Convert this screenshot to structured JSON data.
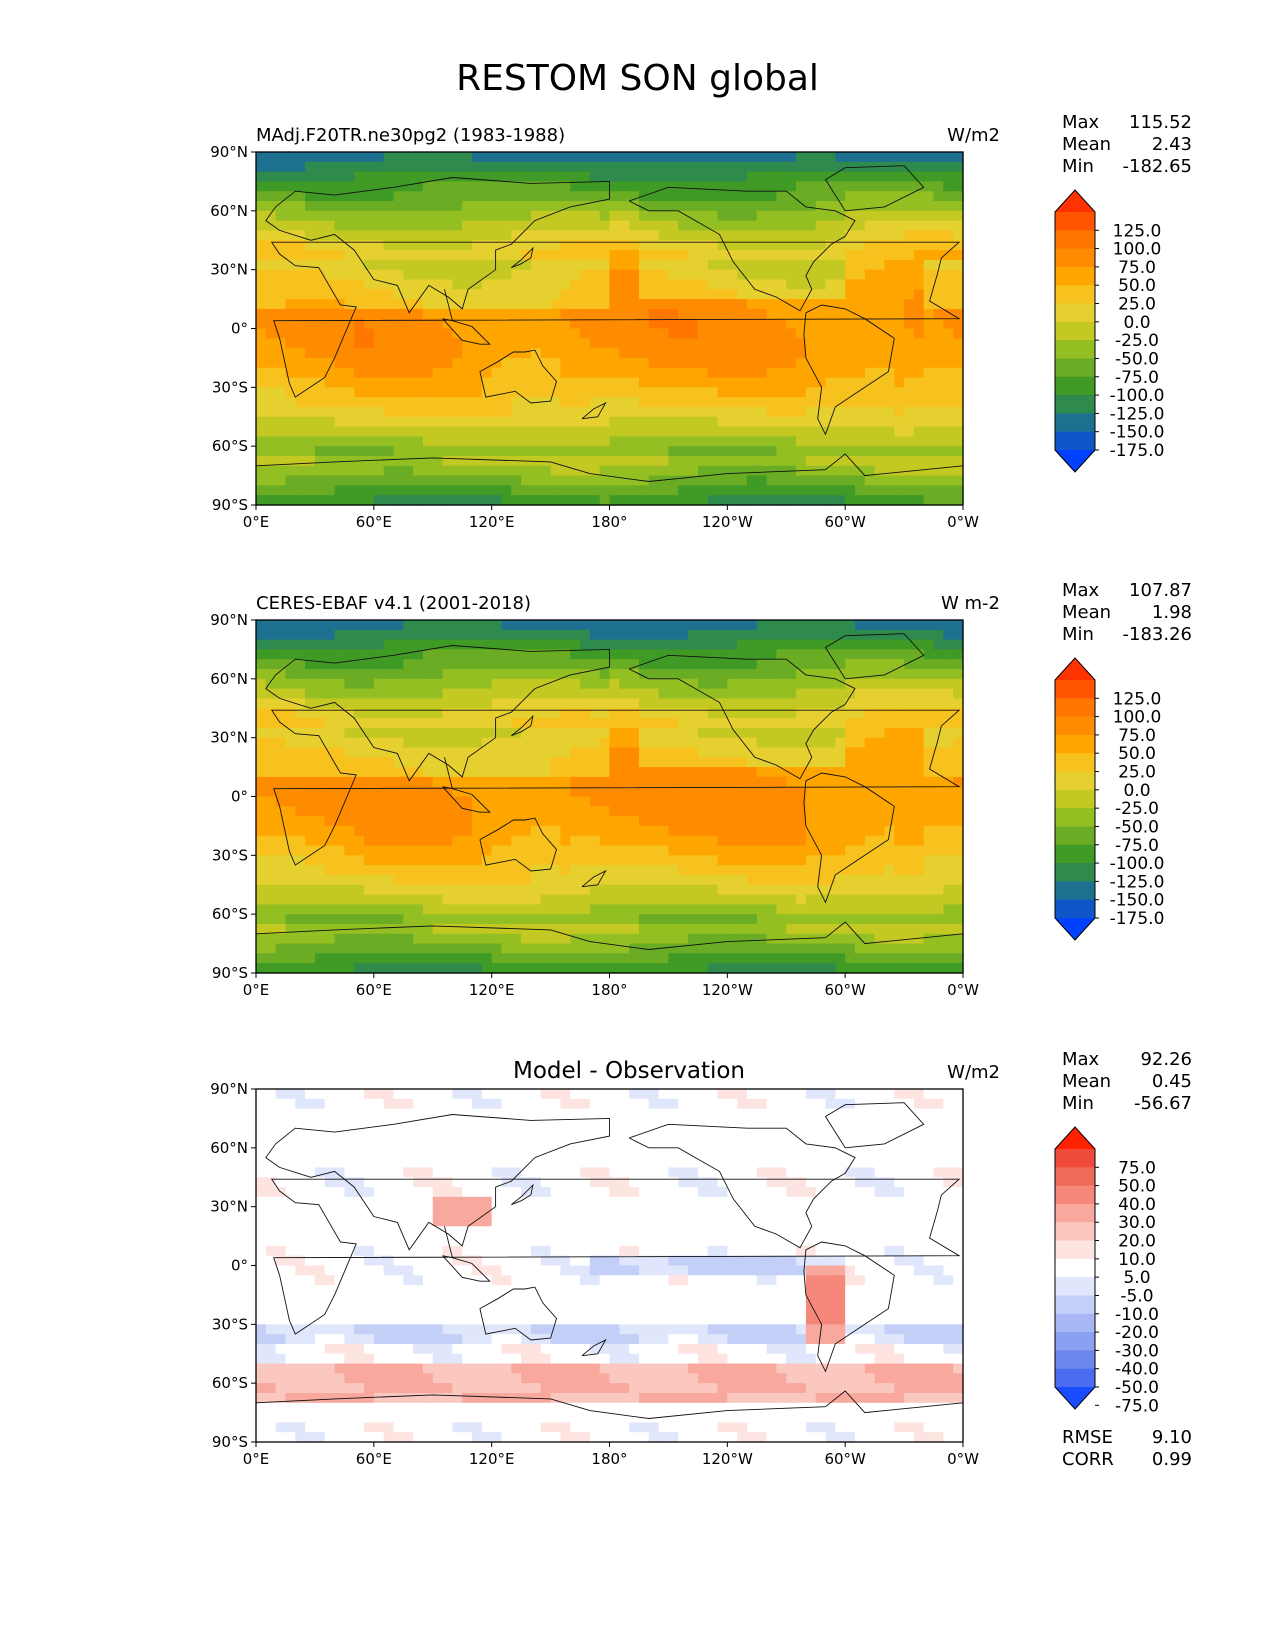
{
  "figure": {
    "title": "RESTOM SON global"
  },
  "axes": {
    "lat_ticks": [
      "90°N",
      "60°N",
      "30°N",
      "0°",
      "30°S",
      "60°S",
      "90°S"
    ],
    "lon_ticks": [
      "0°E",
      "60°E",
      "120°E",
      "180°",
      "120°W",
      "60°W",
      "0°W"
    ],
    "lon_range": [
      0,
      360
    ],
    "lat_range": [
      -90,
      90
    ]
  },
  "panels": [
    {
      "title": "MAdj.F20TR.ne30pg2 (1983-1988)",
      "units": "W/m2",
      "stats": {
        "max_label": "Max",
        "max": "115.52",
        "mean_label": "Mean",
        "mean": "2.43",
        "min_label": "Min",
        "min": "-182.65"
      },
      "colorbar": {
        "labels": [
          "125.0",
          "100.0",
          "75.0",
          "50.0",
          "25.0",
          "0.0",
          "-25.0",
          "-50.0",
          "-75.0",
          "-100.0",
          "-125.0",
          "-150.0",
          "-175.0"
        ],
        "colors": [
          "#ff3300",
          "#ff5500",
          "#ff7700",
          "#ff8c00",
          "#ffa500",
          "#f7c21e",
          "#e6d030",
          "#c4c822",
          "#94bf22",
          "#6aad24",
          "#3f9a26",
          "#2f8a4e",
          "#1e7090",
          "#1056c8",
          "#0040ff"
        ]
      }
    },
    {
      "title": "CERES-EBAF v4.1 (2001-2018)",
      "units": "W m-2",
      "stats": {
        "max_label": "Max",
        "max": "107.87",
        "mean_label": "Mean",
        "mean": "1.98",
        "min_label": "Min",
        "min": "-183.26"
      },
      "colorbar": {
        "labels": [
          "125.0",
          "100.0",
          "75.0",
          "50.0",
          "25.0",
          "0.0",
          "-25.0",
          "-50.0",
          "-75.0",
          "-100.0",
          "-125.0",
          "-150.0",
          "-175.0"
        ],
        "colors": [
          "#ff3300",
          "#ff5500",
          "#ff7700",
          "#ff8c00",
          "#ffa500",
          "#f7c21e",
          "#e6d030",
          "#c4c822",
          "#94bf22",
          "#6aad24",
          "#3f9a26",
          "#2f8a4e",
          "#1e7090",
          "#1056c8",
          "#0040ff"
        ]
      }
    },
    {
      "title": "Model - Observation",
      "units": "W/m2",
      "stats": {
        "max_label": "Max",
        "max": "92.26",
        "mean_label": "Mean",
        "mean": "0.45",
        "min_label": "Min",
        "min": "-56.67"
      },
      "colorbar": {
        "labels": [
          "75.0",
          "50.0",
          "40.0",
          "30.0",
          "20.0",
          "10.0",
          "5.0",
          "-5.0",
          "-10.0",
          "-20.0",
          "-30.0",
          "-40.0",
          "-50.0",
          "-75.0"
        ],
        "colors": [
          "#ff2200",
          "#f04a3a",
          "#f06a5a",
          "#f5887a",
          "#f8a89c",
          "#fbc8c0",
          "#fde4e0",
          "#ffffff",
          "#e0e6fc",
          "#c4cff8",
          "#a8b8f4",
          "#8aa0f0",
          "#6c88ee",
          "#4c6cf0",
          "#1a4cff"
        ]
      },
      "metrics": {
        "rmse_label": "RMSE",
        "rmse": "9.10",
        "corr_label": "CORR",
        "corr": "0.99"
      }
    }
  ]
}
